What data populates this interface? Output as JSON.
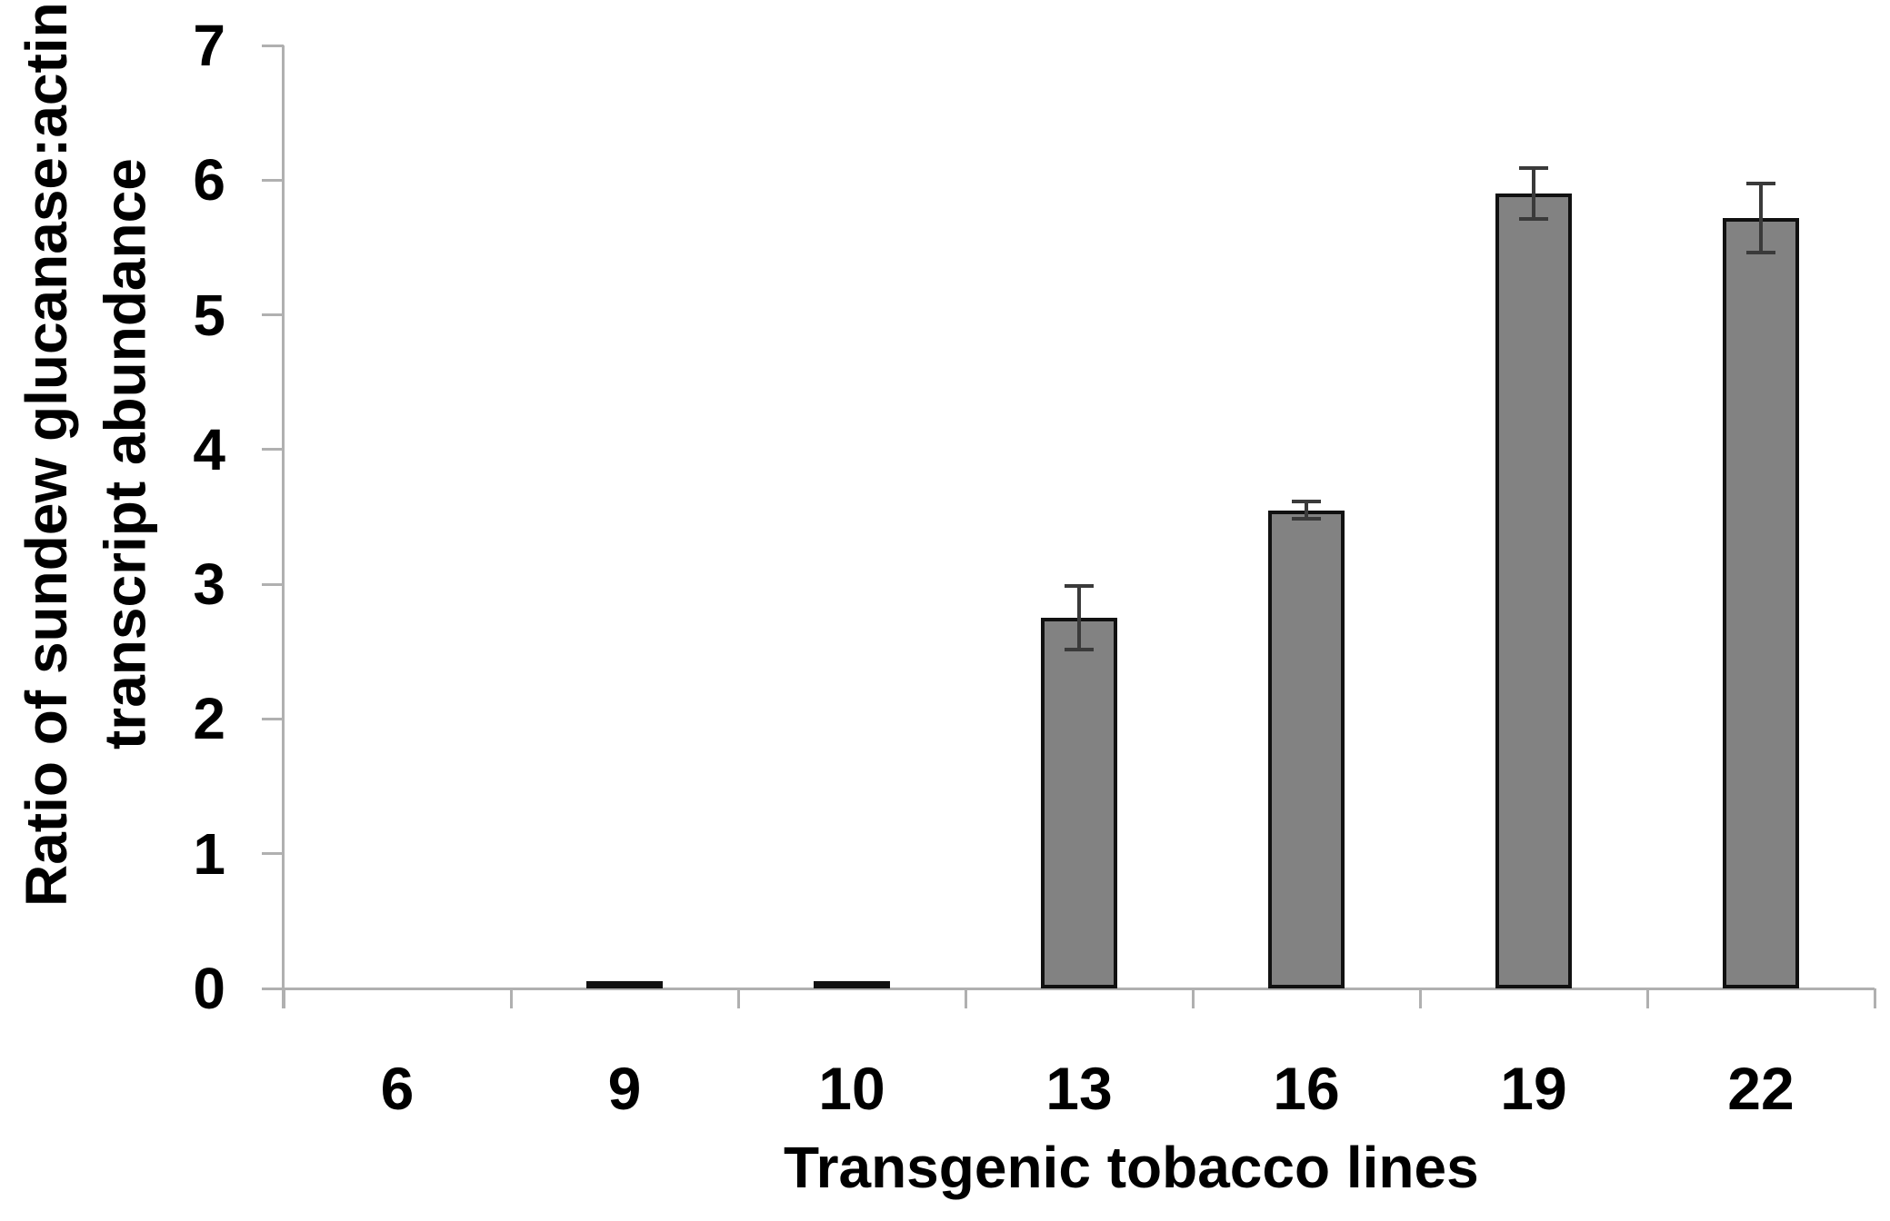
{
  "chart_data": {
    "type": "bar",
    "title": "",
    "xlabel": "Transgenic tobacco lines",
    "ylabel": "Ratio of sundew glucanase:actin transcript abundance",
    "ylabel_lines": [
      "Ratio of sundew glucanase:actin",
      "transcript abundance"
    ],
    "categories": [
      "6",
      "9",
      "10",
      "13",
      "16",
      "19",
      "22"
    ],
    "values": [
      0,
      0.05,
      0.04,
      2.75,
      3.55,
      5.9,
      5.72
    ],
    "error_bars": [
      0,
      0,
      0,
      0.25,
      0.08,
      0.2,
      0.27
    ],
    "ylim": [
      0,
      7
    ],
    "yticks": [
      0,
      1,
      2,
      3,
      4,
      5,
      6,
      7
    ],
    "grid": false,
    "legend": false,
    "colors": {
      "bar_fill": "#828282",
      "bar_stroke": "#111111",
      "error_bar": "#3a3a3a",
      "axis_line": "#b0b0b0",
      "text": "#000000",
      "background": "#ffffff"
    }
  }
}
